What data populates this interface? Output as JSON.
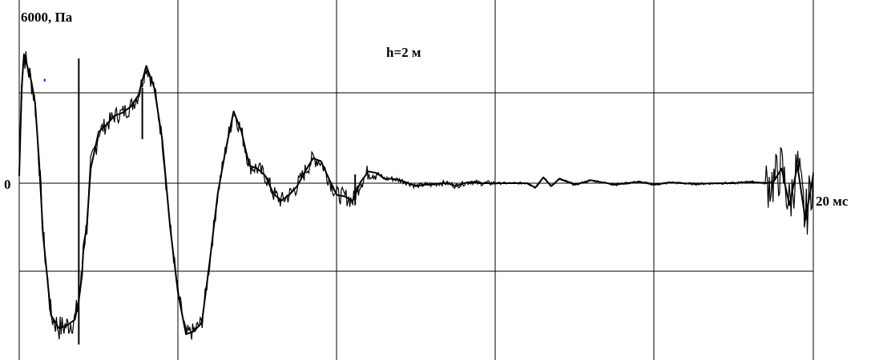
{
  "chart_data": {
    "type": "line",
    "title": "h=2 м",
    "ylabel": "6000, Па",
    "xlabel": "20 мс",
    "y_zero_label": "0",
    "xlim": [
      0,
      100
    ],
    "ylim": [
      -12000,
      12000
    ],
    "grid": true,
    "colors": {
      "trace": "#000000",
      "grid": "#000000",
      "marks": "#0000cc"
    },
    "series": [
      {
        "x": [
          0.0,
          0.3,
          0.6,
          1.0,
          1.5,
          2.0,
          2.5,
          3.0,
          4.0,
          5.0,
          6.0,
          7.0,
          7.5,
          7.9,
          8.1,
          8.5,
          9.0,
          10.0,
          11.0,
          12.0,
          13.0,
          14.0,
          15.0,
          16.0,
          17.0,
          18.0,
          19.0,
          20.0,
          21.0,
          22.0,
          23.0,
          24.0,
          25.0,
          26.0,
          27.0,
          27.5,
          28.0,
          28.5,
          29.0,
          30.0,
          31.0,
          32.0,
          33.0,
          34.0,
          35.0,
          36.0,
          37.0,
          38.0,
          39.0,
          40.0,
          41.0,
          42.0,
          43.0,
          44.0,
          45.0,
          46.0,
          47.0,
          48.0,
          49.0,
          50.0,
          51.0,
          52.0,
          53.0,
          54.0,
          55.0,
          56.0,
          57.0,
          58.0,
          59.0,
          60.0,
          61.0,
          62.0,
          63.0,
          64.0,
          65.0,
          66.0,
          67.0,
          68.0,
          70.0,
          72.0,
          75.0,
          78.0,
          80.0,
          82.0,
          85.0,
          88.0,
          90.0,
          92.0,
          94.0,
          95.0,
          96.0,
          97.0,
          98.0,
          99.0,
          100.0
        ],
        "y": [
          500,
          6500,
          8800,
          8000,
          7000,
          5500,
          1500,
          -3500,
          -9000,
          -9900,
          -9700,
          -9300,
          -8000,
          -6300,
          -4200,
          -3000,
          1000,
          3500,
          4000,
          4600,
          4800,
          5200,
          6000,
          8000,
          6500,
          3000,
          -3000,
          -7500,
          -10300,
          -10100,
          -9500,
          -5300,
          -700,
          2300,
          4900,
          4200,
          3500,
          2300,
          1200,
          1000,
          500,
          -700,
          -1200,
          -800,
          -200,
          800,
          1700,
          1500,
          300,
          -800,
          -900,
          -1200,
          100,
          800,
          700,
          300,
          300,
          200,
          0,
          -200,
          -100,
          -100,
          0,
          0,
          -200,
          0,
          100,
          0,
          0,
          0,
          0,
          0,
          0,
          0,
          -300,
          400,
          -200,
          300,
          -100,
          200,
          -100,
          100,
          -100,
          50,
          -50,
          0,
          0,
          100,
          0,
          100,
          1000,
          -1500,
          1200,
          -2500,
          600
        ]
      }
    ]
  }
}
